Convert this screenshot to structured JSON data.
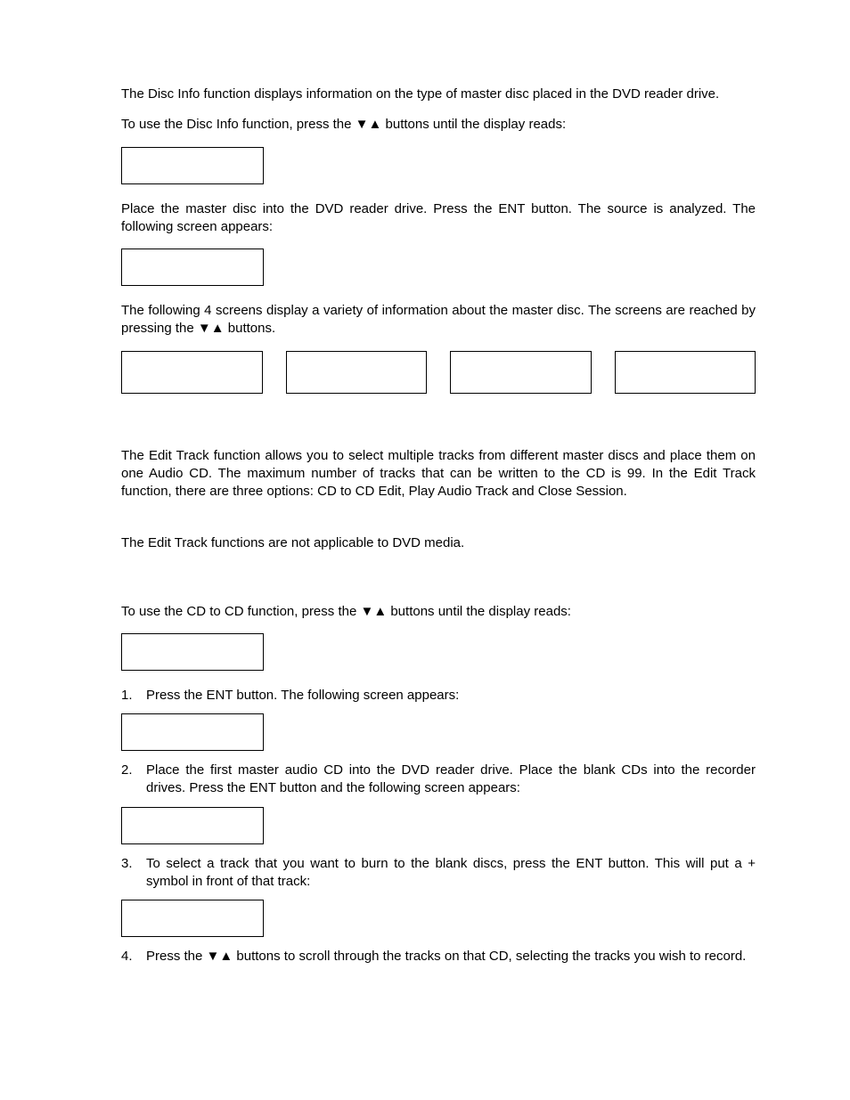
{
  "intro1": "The Disc Info function displays information on the type of master disc placed in the DVD reader drive.",
  "intro2_pre": "To use the Disc Info function, press the ",
  "intro2_post": " buttons until the display reads:",
  "arrows": "▼▲",
  "para3": "Place the master disc into the DVD reader drive.  Press the ENT button.  The source is analyzed.  The following screen appears:",
  "para4_pre": "The following 4 screens display a variety of information about the master disc.  The screens are reached by pressing the ",
  "para4_post": " buttons.",
  "edit1": "The Edit Track function allows you to select multiple tracks from different master discs and place them on one Audio CD.  The maximum number of tracks that can be written to the CD is 99.  In the Edit Track function, there are three options:  CD to CD Edit, Play Audio Track and Close Session.",
  "edit2": "The Edit Track functions are not applicable to DVD media.",
  "cd_pre": "To use the CD to CD function, press the ",
  "cd_post": " buttons until the display reads:",
  "step1": "Press the ENT button.  The following screen appears:",
  "step2": "Place the first master audio CD into the DVD reader drive.  Place the blank CDs into the recorder drives.  Press the ENT button and the following screen appears:",
  "step3": "To select a track that you want to burn to the blank discs, press the ENT button.  This will put a + symbol in front of that track:",
  "step4_pre": "Press the ",
  "step4_post": " buttons to scroll through the tracks on that CD, selecting the tracks you wish to record.",
  "n1": "1.",
  "n2": "2.",
  "n3": "3.",
  "n4": "4.",
  "box_border": "#000000",
  "box_height_small": 42,
  "box_height_row": 48
}
